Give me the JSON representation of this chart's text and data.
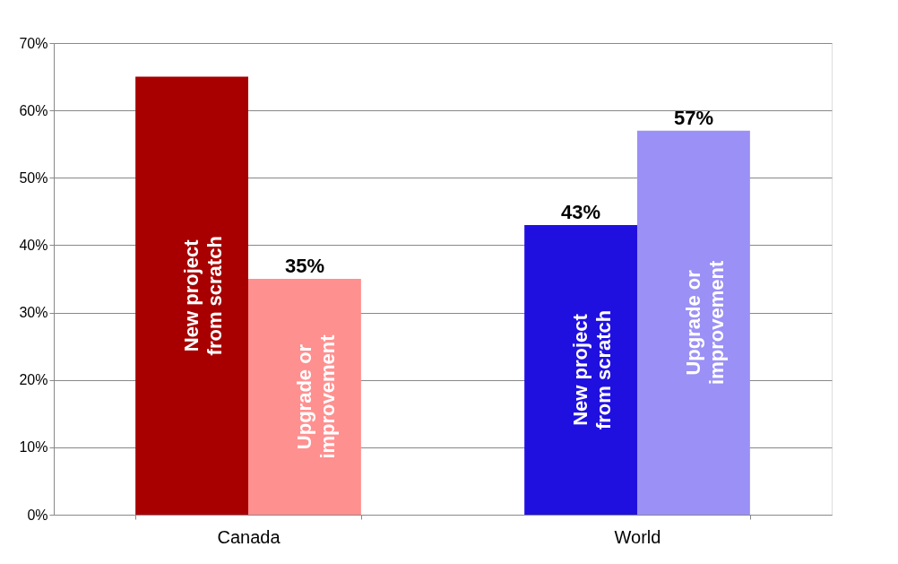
{
  "chart_data": {
    "type": "bar",
    "categories": [
      "Canada",
      "World"
    ],
    "series": [
      {
        "name": "New project from scratch",
        "colors": [
          "#a80000",
          "#2010e0"
        ],
        "values": [
          65,
          43
        ],
        "value_labels": [
          null,
          "43%"
        ]
      },
      {
        "name": "Upgrade or improvement",
        "colors": [
          "#ff9090",
          "#9b90f5"
        ],
        "values": [
          35,
          57
        ],
        "value_labels": [
          "35%",
          "57%"
        ]
      }
    ],
    "ylim": [
      0,
      70
    ],
    "yticks": [
      {
        "value": 0,
        "label": "0%"
      },
      {
        "value": 10,
        "label": "10%"
      },
      {
        "value": 20,
        "label": "20%"
      },
      {
        "value": 30,
        "label": "30%"
      },
      {
        "value": 40,
        "label": "40%"
      },
      {
        "value": 50,
        "label": "50%"
      },
      {
        "value": 60,
        "label": "60%"
      },
      {
        "value": 70,
        "label": "70%"
      }
    ],
    "grid": "y"
  }
}
